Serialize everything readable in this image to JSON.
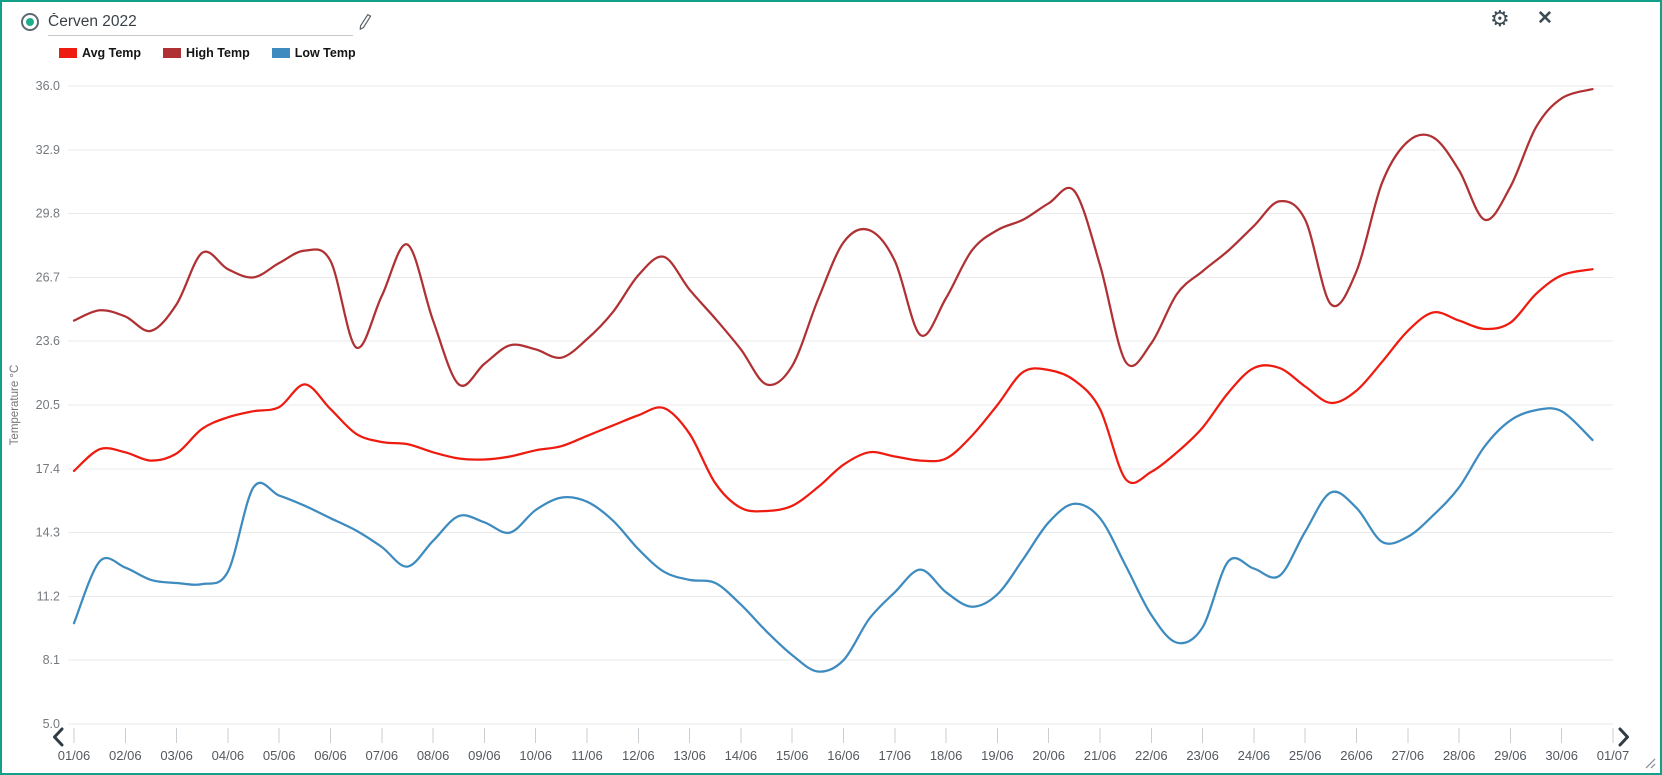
{
  "header": {
    "title": "Červen 2022"
  },
  "icons": {
    "settings_glyph": "⚙",
    "close_glyph": "✕"
  },
  "chart_data": {
    "type": "line",
    "title": "Červen 2022",
    "ylabel": "Temperature °C",
    "ylim": [
      5.0,
      36.0
    ],
    "yticks": [
      36.0,
      32.9,
      29.8,
      26.7,
      23.6,
      20.5,
      17.4,
      14.3,
      11.2,
      8.1,
      5.0
    ],
    "xtick_labels": [
      "01/06",
      "02/06",
      "03/06",
      "04/06",
      "05/06",
      "06/06",
      "07/06",
      "08/06",
      "09/06",
      "10/06",
      "11/06",
      "12/06",
      "13/06",
      "14/06",
      "15/06",
      "16/06",
      "17/06",
      "18/06",
      "19/06",
      "20/06",
      "21/06",
      "22/06",
      "23/06",
      "24/06",
      "25/06",
      "26/06",
      "27/06",
      "28/06",
      "29/06",
      "30/06",
      "01/07"
    ],
    "grid": "horizontal-only",
    "legend_position": "top-left",
    "x_days": [
      1,
      1.5,
      2,
      2.5,
      3,
      3.5,
      4,
      4.5,
      5,
      5.5,
      6,
      6.5,
      7,
      7.5,
      8,
      8.5,
      9,
      9.5,
      10,
      10.5,
      11,
      11.5,
      12,
      12.5,
      13,
      13.5,
      14,
      14.5,
      15,
      15.5,
      16,
      16.5,
      17,
      17.5,
      18,
      18.5,
      19,
      19.5,
      20,
      20.5,
      21,
      21.5,
      22,
      22.5,
      23,
      23.5,
      24,
      24.5,
      25,
      25.5,
      26,
      26.5,
      27,
      27.5,
      28,
      28.5,
      29,
      29.5,
      30,
      30.6
    ],
    "series": [
      {
        "name": "Avg Temp",
        "color": "#EE1C10",
        "values": [
          17.3,
          18.35,
          18.2,
          17.8,
          18.15,
          19.35,
          19.9,
          20.2,
          20.4,
          21.5,
          20.3,
          19.1,
          18.7,
          18.6,
          18.2,
          17.9,
          17.85,
          18.0,
          18.3,
          18.5,
          19.0,
          19.5,
          20.0,
          20.35,
          19.1,
          16.7,
          15.5,
          15.35,
          15.6,
          16.5,
          17.6,
          18.2,
          18.0,
          17.8,
          17.9,
          19.0,
          20.5,
          22.1,
          22.2,
          21.7,
          20.3,
          16.9,
          17.25,
          18.2,
          19.4,
          21.1,
          22.3,
          22.3,
          21.4,
          20.6,
          21.2,
          22.6,
          24.1,
          25.0,
          24.6,
          24.2,
          24.5,
          25.9,
          26.8,
          27.1
        ]
      },
      {
        "name": "High Temp",
        "color": "#B03134",
        "values": [
          24.6,
          25.1,
          24.8,
          24.1,
          25.4,
          27.9,
          27.1,
          26.7,
          27.4,
          28.0,
          27.5,
          23.3,
          25.8,
          28.3,
          24.6,
          21.5,
          22.5,
          23.4,
          23.2,
          22.8,
          23.7,
          25.0,
          26.8,
          27.7,
          26.1,
          24.7,
          23.2,
          21.5,
          22.4,
          25.6,
          28.4,
          29.0,
          27.5,
          23.9,
          25.7,
          28.0,
          29.0,
          29.5,
          30.3,
          30.9,
          27.3,
          22.6,
          23.5,
          25.9,
          27.0,
          28.0,
          29.2,
          30.4,
          29.5,
          25.4,
          27.0,
          31.3,
          33.3,
          33.5,
          31.9,
          29.5,
          31.1,
          34.0,
          35.4,
          35.85
        ]
      },
      {
        "name": "Low Temp",
        "color": "#3E8BC0",
        "values": [
          9.9,
          12.9,
          12.6,
          12.0,
          11.85,
          11.8,
          12.4,
          16.5,
          16.1,
          15.6,
          15.0,
          14.4,
          13.6,
          12.65,
          13.9,
          15.1,
          14.8,
          14.3,
          15.4,
          16.0,
          15.8,
          14.9,
          13.5,
          12.4,
          12.0,
          11.85,
          10.8,
          9.5,
          8.35,
          7.55,
          8.1,
          10.1,
          11.4,
          12.5,
          11.4,
          10.7,
          11.3,
          13.0,
          14.8,
          15.7,
          15.0,
          12.7,
          10.3,
          8.95,
          9.7,
          12.9,
          12.55,
          12.2,
          14.35,
          16.25,
          15.5,
          13.85,
          14.1,
          15.15,
          16.5,
          18.5,
          19.75,
          20.25,
          20.2,
          18.8
        ]
      }
    ]
  }
}
